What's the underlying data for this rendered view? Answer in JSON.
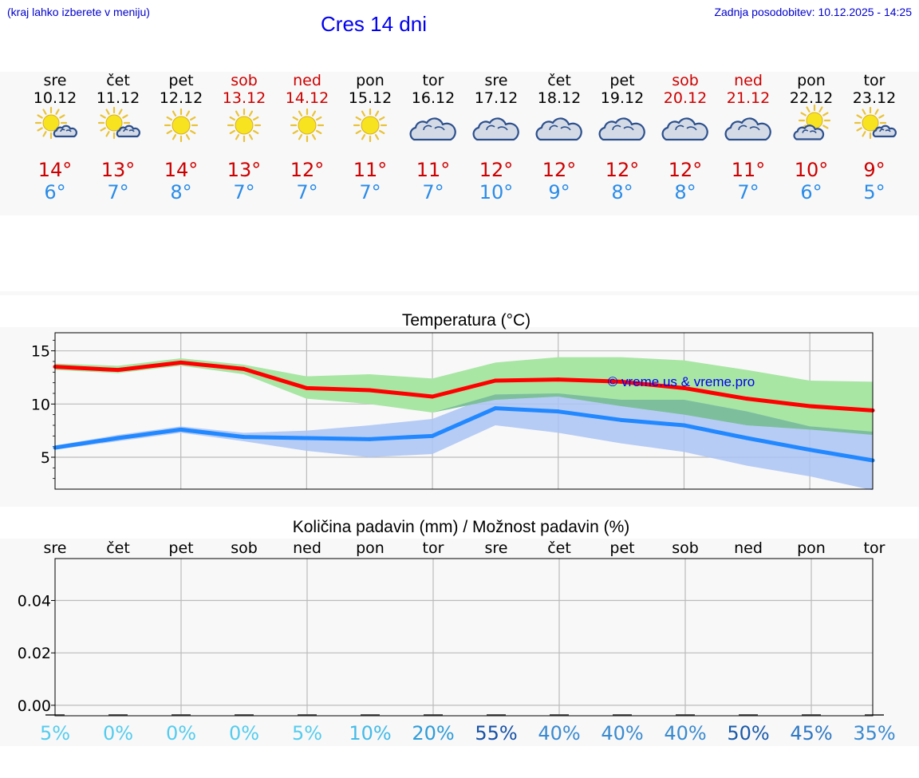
{
  "header": {
    "note": "(kraj lahko izberete v meniju)",
    "title": "Cres 14 dni",
    "updated": "Zadnja posodobitev: 10.12.2025 - 14:25"
  },
  "colors": {
    "weekday": "#000000",
    "weekend": "#cc0000",
    "tmax": "#cc0000",
    "tmin": "#2a8ce8",
    "maxLine": "#ff0000",
    "minLine": "#2288ff",
    "maxBand": "#a8e6a3",
    "minBand": "#aac4f4",
    "overlap": "#7dbf9c",
    "watermark": "#0000ee"
  },
  "forecast": [
    {
      "day": "sre",
      "date": "10.12",
      "weekend": false,
      "icon": "sun-cloud-icon",
      "tmax": "14°",
      "tmin": "6°"
    },
    {
      "day": "čet",
      "date": "11.12",
      "weekend": false,
      "icon": "sun-cloud-icon",
      "tmax": "13°",
      "tmin": "7°"
    },
    {
      "day": "pet",
      "date": "12.12",
      "weekend": false,
      "icon": "sun-icon",
      "tmax": "14°",
      "tmin": "8°"
    },
    {
      "day": "sob",
      "date": "13.12",
      "weekend": true,
      "icon": "sun-icon",
      "tmax": "13°",
      "tmin": "7°"
    },
    {
      "day": "ned",
      "date": "14.12",
      "weekend": true,
      "icon": "sun-icon",
      "tmax": "12°",
      "tmin": "7°"
    },
    {
      "day": "pon",
      "date": "15.12",
      "weekend": false,
      "icon": "sun-icon",
      "tmax": "11°",
      "tmin": "7°"
    },
    {
      "day": "tor",
      "date": "16.12",
      "weekend": false,
      "icon": "cloud-icon",
      "tmax": "11°",
      "tmin": "7°"
    },
    {
      "day": "sre",
      "date": "17.12",
      "weekend": false,
      "icon": "cloud-icon",
      "tmax": "12°",
      "tmin": "10°"
    },
    {
      "day": "čet",
      "date": "18.12",
      "weekend": false,
      "icon": "cloud-icon",
      "tmax": "12°",
      "tmin": "9°"
    },
    {
      "day": "pet",
      "date": "19.12",
      "weekend": false,
      "icon": "cloud-icon",
      "tmax": "12°",
      "tmin": "8°"
    },
    {
      "day": "sob",
      "date": "20.12",
      "weekend": true,
      "icon": "cloud-icon",
      "tmax": "12°",
      "tmin": "8°"
    },
    {
      "day": "ned",
      "date": "21.12",
      "weekend": true,
      "icon": "cloud-icon",
      "tmax": "11°",
      "tmin": "7°"
    },
    {
      "day": "pon",
      "date": "22.12",
      "weekend": false,
      "icon": "cloud-sun-icon",
      "tmax": "10°",
      "tmin": "6°"
    },
    {
      "day": "tor",
      "date": "23.12",
      "weekend": false,
      "icon": "sun-cloud-icon",
      "tmax": "9°",
      "tmin": "5°"
    }
  ],
  "chart_data": [
    {
      "type": "line",
      "title": "Temperatura (°C)",
      "xlabel": "",
      "ylabel": "°C",
      "ylim": [
        2,
        16.7
      ],
      "yticks": [
        5,
        10,
        15
      ],
      "yticklabels": [
        "5",
        "10",
        "15"
      ],
      "xlim": [
        0,
        13
      ],
      "grid": true,
      "watermark": "© vreme.us & vreme.pro",
      "series": [
        {
          "name": "max",
          "x": [
            0,
            1,
            2,
            3,
            4,
            5,
            6,
            7,
            8,
            9,
            10,
            11,
            12,
            13
          ],
          "values": [
            13.5,
            13.2,
            13.9,
            13.3,
            11.5,
            11.3,
            10.7,
            12.2,
            12.3,
            12.1,
            11.5,
            10.5,
            9.8,
            9.4
          ]
        },
        {
          "name": "min",
          "x": [
            0,
            1,
            2,
            3,
            4,
            5,
            6,
            7,
            8,
            9,
            10,
            11,
            12,
            13
          ],
          "values": [
            5.9,
            6.8,
            7.6,
            6.9,
            6.8,
            6.7,
            7.0,
            9.6,
            9.3,
            8.5,
            8.0,
            6.8,
            5.7,
            4.7
          ]
        }
      ],
      "bands": [
        {
          "name": "max-range",
          "x": [
            0,
            1,
            2,
            3,
            4,
            5,
            6,
            7,
            8,
            9,
            10,
            11,
            12,
            13
          ],
          "upper": [
            13.8,
            13.6,
            14.3,
            13.7,
            12.6,
            12.8,
            12.4,
            13.9,
            14.4,
            14.4,
            14.1,
            13.2,
            12.2,
            12.1
          ],
          "lower": [
            13.2,
            12.9,
            13.6,
            12.8,
            10.5,
            10.0,
            9.2,
            10.4,
            10.7,
            9.8,
            9.0,
            8.0,
            7.6,
            7.1
          ]
        },
        {
          "name": "min-range",
          "x": [
            0,
            1,
            2,
            3,
            4,
            5,
            6,
            7,
            8,
            9,
            10,
            11,
            12,
            13
          ],
          "upper": [
            6.1,
            7.1,
            7.9,
            7.3,
            7.5,
            8.0,
            8.6,
            10.9,
            11.0,
            10.4,
            10.4,
            9.3,
            7.9,
            7.4
          ],
          "lower": [
            5.7,
            6.5,
            7.3,
            6.5,
            5.6,
            5.0,
            5.3,
            8.0,
            7.3,
            6.3,
            5.5,
            4.2,
            3.2,
            1.9
          ]
        }
      ]
    },
    {
      "type": "bar",
      "title": "Količina padavin (mm) / Možnost padavin (%)",
      "categories": [
        "sre",
        "čet",
        "pet",
        "sob",
        "ned",
        "pon",
        "tor",
        "sre",
        "čet",
        "pet",
        "sob",
        "ned",
        "pon",
        "tor"
      ],
      "values": [
        0,
        0,
        0,
        0,
        0,
        0,
        0,
        0,
        0,
        0,
        0,
        0,
        0,
        0
      ],
      "chance": [
        "5%",
        "0%",
        "0%",
        "0%",
        "5%",
        "10%",
        "20%",
        "55%",
        "40%",
        "40%",
        "40%",
        "50%",
        "45%",
        "35%"
      ],
      "chance_colors": [
        "#55ccee",
        "#55ccee",
        "#55ccee",
        "#55ccee",
        "#55ccee",
        "#44bbe8",
        "#2e9cd8",
        "#1650a6",
        "#3a8ad0",
        "#3a8ad0",
        "#3a8ad0",
        "#1a5aaa",
        "#2e78c4",
        "#3a8ad0"
      ],
      "xlabel": "",
      "ylabel": "mm",
      "ylim": [
        -0.004,
        0.056
      ],
      "yticks": [
        0.0,
        0.02,
        0.04
      ],
      "yticklabels": [
        "0.00",
        "0.02",
        "0.04"
      ],
      "grid": true
    }
  ]
}
